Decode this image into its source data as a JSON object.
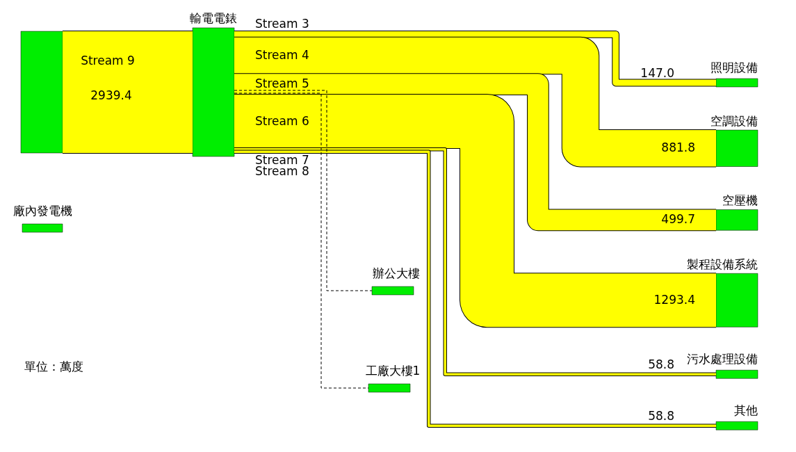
{
  "chart_data": {
    "type": "other",
    "color": "#00ee00",
    "categories": [
      "輸電電錶",
      "照明設備",
      "空調設備",
      "空壓機",
      "製程設備系統",
      "污水處理設備",
      "其他"
    ],
    "values": [
      2939.4,
      147.0,
      881.8,
      499.7,
      1293.4,
      58.8,
      58.8
    ],
    "value_labels": [
      "2939.4",
      "147.0",
      "881.8",
      "499.7",
      "1293.4",
      "58.8",
      "58.8"
    ],
    "colors": [
      "#ffff00",
      "#ffff00",
      "#ffff00",
      "#ffff00",
      "#ffff00",
      "#ffff00",
      "#ffff00"
    ],
    "annotations": [
      "Stream 9",
      "Stream 3",
      "Stream 4",
      "Stream 5",
      "Stream 6",
      "Stream 7",
      "Stream 8",
      "廠內發電機",
      "辦公大樓",
      "工廠大樓1",
      "單位：萬度"
    ]
  }
}
